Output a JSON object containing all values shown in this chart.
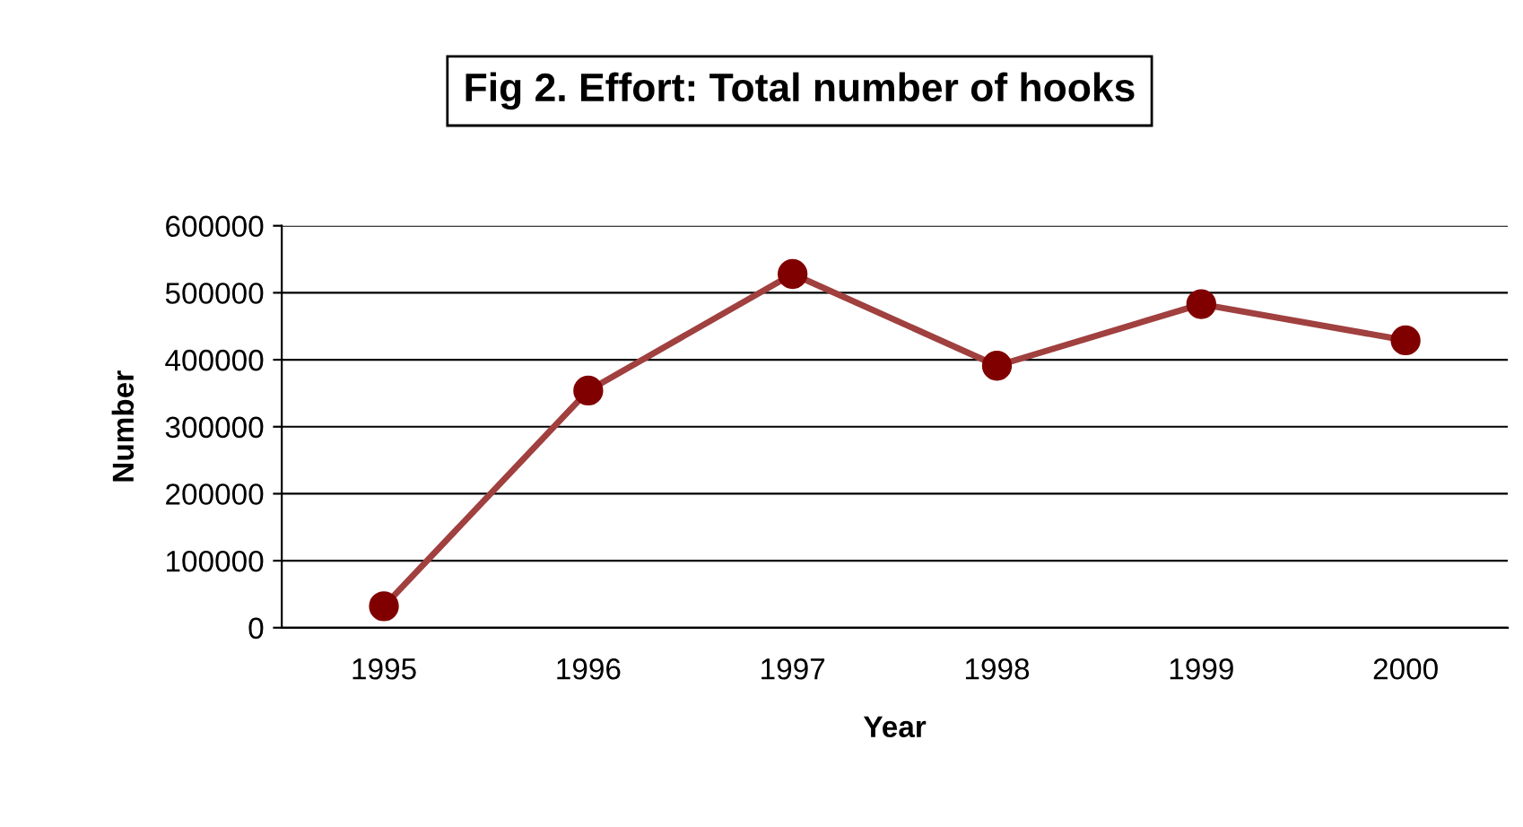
{
  "chart_data": {
    "type": "line",
    "title": "Fig 2. Effort: Total number of hooks",
    "xlabel": "Year",
    "ylabel": "Number",
    "categories": [
      "1995",
      "1996",
      "1997",
      "1998",
      "1999",
      "2000"
    ],
    "series": [
      {
        "color": "#a0403f",
        "values": [
          32000,
          354000,
          528000,
          391000,
          483000,
          429000
        ]
      }
    ],
    "ylim": [
      0,
      600000
    ],
    "yticks": [
      0,
      100000,
      200000,
      300000,
      400000,
      500000,
      600000
    ],
    "grid": "y",
    "marker": "circle",
    "line_style": "solid"
  }
}
